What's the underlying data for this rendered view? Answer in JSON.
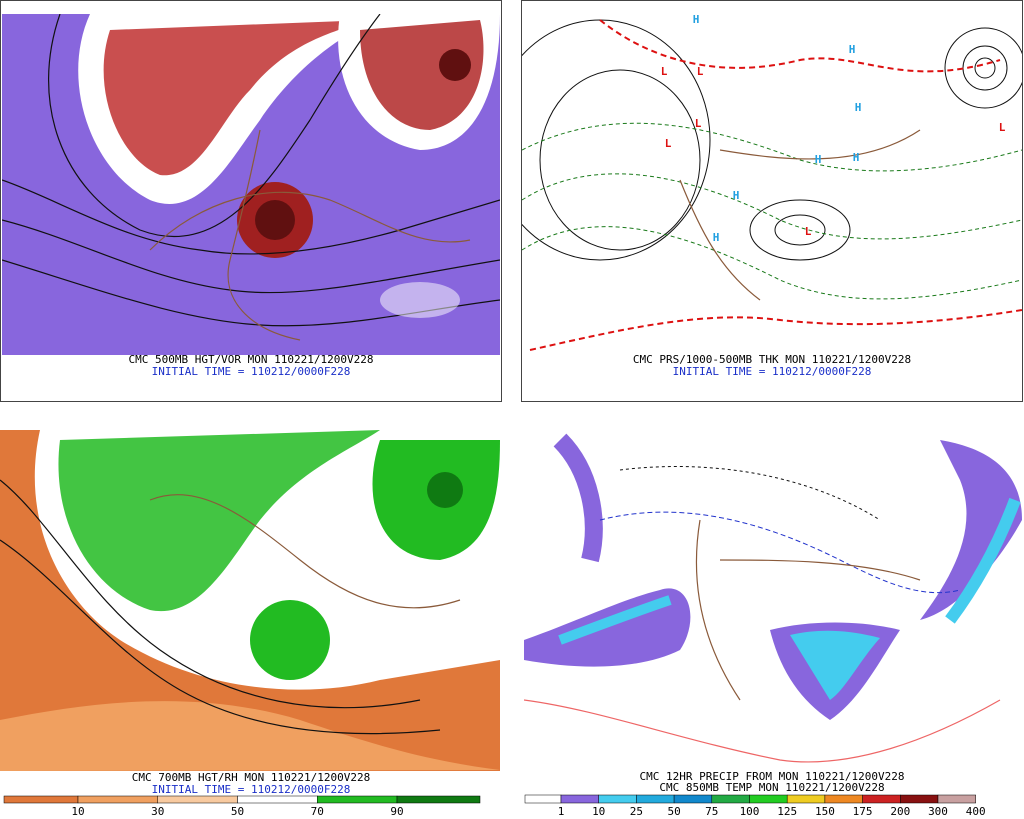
{
  "panels": [
    {
      "caption": [
        "CMC 500MB HGT/VOR MON 110221/1200V228",
        "INITIAL TIME = 110212/0000F228"
      ]
    },
    {
      "caption": [
        "CMC PRS/1000-500MB THK MON 110221/1200V228",
        "INITIAL TIME = 110212/0000F228"
      ],
      "highs": [
        "H",
        "H",
        "H",
        "H",
        "H",
        "H",
        "H"
      ],
      "lows": [
        "L",
        "L",
        "L",
        "L",
        "L",
        "L"
      ]
    },
    {
      "caption": [
        "CMC 700MB HGT/RH MON 110221/1200V228",
        "INITIAL TIME = 110212/0000F228"
      ],
      "colorbar": {
        "labels": [
          "10",
          "30",
          "50",
          "70",
          "90"
        ],
        "colors": [
          "#e0783a",
          "#f0a060",
          "#f8caa0",
          "#ffffff",
          "#22bb22",
          "#0f7a12"
        ]
      }
    },
    {
      "caption": [
        "CMC 12HR PRECIP FROM MON 110221/1200V228",
        "CMC 850MB TEMP MON 110221/1200V228"
      ],
      "colorbar": {
        "labels": [
          "1",
          "10",
          "25",
          "50",
          "75",
          "100",
          "125",
          "150",
          "175",
          "200",
          "300",
          "400"
        ],
        "colors": [
          "#ffffff",
          "#8866dd",
          "#44ccee",
          "#22aadd",
          "#1188cc",
          "#22aa44",
          "#22cc22",
          "#eecc22",
          "#ee8822",
          "#cc2222",
          "#881111",
          "#c8a0a0"
        ]
      }
    }
  ]
}
